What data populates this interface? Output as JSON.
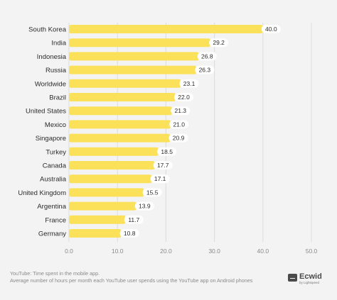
{
  "chart_data": {
    "type": "bar",
    "orientation": "horizontal",
    "categories": [
      "South Korea",
      "India",
      "Indonesia",
      "Russia",
      "Worldwide",
      "Brazil",
      "United States",
      "Mexico",
      "Singapore",
      "Turkey",
      "Canada",
      "Australia",
      "United Kingdom",
      "Argentina",
      "France",
      "Germany"
    ],
    "values": [
      40.0,
      29.2,
      26.8,
      26.3,
      23.1,
      22.0,
      21.3,
      21.0,
      20.9,
      18.5,
      17.7,
      17.1,
      15.5,
      13.9,
      11.7,
      10.8
    ],
    "value_labels": [
      "40.0",
      "29.2",
      "26.8",
      "26.3",
      "23.1",
      "22.0",
      "21.3",
      "21.0",
      "20.9",
      "18.5",
      "17.7",
      "17.1",
      "15.5",
      "13.9",
      "11.7",
      "10.8"
    ],
    "xlim": [
      0,
      50
    ],
    "xticks": [
      "0.0",
      "10.0",
      "20.0",
      "30.0",
      "40.0",
      "50.0"
    ],
    "grid": true,
    "bar_color": "#fbe05a",
    "label_box_color": "#ffffff"
  },
  "footer": {
    "line1": "YouTube: Time spent in the mobile app.",
    "line2": "Average number of hours per month each YouTube user spends using the YouTube app on Android phones"
  },
  "brand": {
    "name": "Ecwid",
    "sub": "by Lightspeed"
  }
}
